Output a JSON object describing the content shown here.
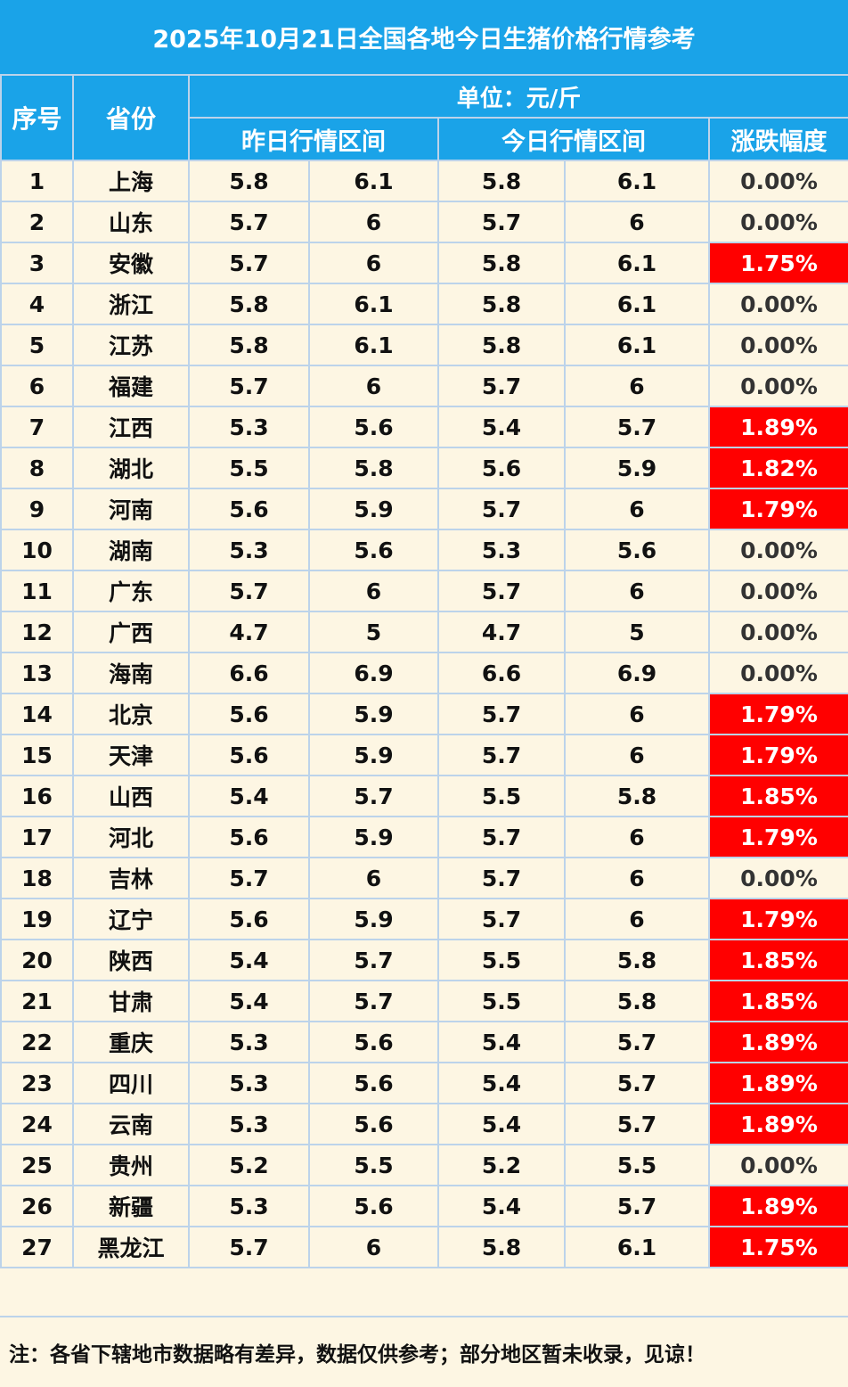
{
  "title": "2025年10月21日全国各地今日生猪价格行情参考",
  "headers": {
    "index": "序号",
    "province": "省份",
    "unit": "单位：元/斤",
    "yesterday": "昨日行情区间",
    "today": "今日行情区间",
    "change": "涨跌幅度"
  },
  "rows": [
    {
      "no": "1",
      "province": "上海",
      "y_low": "5.8",
      "y_high": "6.1",
      "t_low": "5.8",
      "t_high": "6.1",
      "change": "0.00%"
    },
    {
      "no": "2",
      "province": "山东",
      "y_low": "5.7",
      "y_high": "6",
      "t_low": "5.7",
      "t_high": "6",
      "change": "0.00%"
    },
    {
      "no": "3",
      "province": "安徽",
      "y_low": "5.7",
      "y_high": "6",
      "t_low": "5.8",
      "t_high": "6.1",
      "change": "1.75%"
    },
    {
      "no": "4",
      "province": "浙江",
      "y_low": "5.8",
      "y_high": "6.1",
      "t_low": "5.8",
      "t_high": "6.1",
      "change": "0.00%"
    },
    {
      "no": "5",
      "province": "江苏",
      "y_low": "5.8",
      "y_high": "6.1",
      "t_low": "5.8",
      "t_high": "6.1",
      "change": "0.00%"
    },
    {
      "no": "6",
      "province": "福建",
      "y_low": "5.7",
      "y_high": "6",
      "t_low": "5.7",
      "t_high": "6",
      "change": "0.00%"
    },
    {
      "no": "7",
      "province": "江西",
      "y_low": "5.3",
      "y_high": "5.6",
      "t_low": "5.4",
      "t_high": "5.7",
      "change": "1.89%"
    },
    {
      "no": "8",
      "province": "湖北",
      "y_low": "5.5",
      "y_high": "5.8",
      "t_low": "5.6",
      "t_high": "5.9",
      "change": "1.82%"
    },
    {
      "no": "9",
      "province": "河南",
      "y_low": "5.6",
      "y_high": "5.9",
      "t_low": "5.7",
      "t_high": "6",
      "change": "1.79%"
    },
    {
      "no": "10",
      "province": "湖南",
      "y_low": "5.3",
      "y_high": "5.6",
      "t_low": "5.3",
      "t_high": "5.6",
      "change": "0.00%"
    },
    {
      "no": "11",
      "province": "广东",
      "y_low": "5.7",
      "y_high": "6",
      "t_low": "5.7",
      "t_high": "6",
      "change": "0.00%"
    },
    {
      "no": "12",
      "province": "广西",
      "y_low": "4.7",
      "y_high": "5",
      "t_low": "4.7",
      "t_high": "5",
      "change": "0.00%"
    },
    {
      "no": "13",
      "province": "海南",
      "y_low": "6.6",
      "y_high": "6.9",
      "t_low": "6.6",
      "t_high": "6.9",
      "change": "0.00%"
    },
    {
      "no": "14",
      "province": "北京",
      "y_low": "5.6",
      "y_high": "5.9",
      "t_low": "5.7",
      "t_high": "6",
      "change": "1.79%"
    },
    {
      "no": "15",
      "province": "天津",
      "y_low": "5.6",
      "y_high": "5.9",
      "t_low": "5.7",
      "t_high": "6",
      "change": "1.79%"
    },
    {
      "no": "16",
      "province": "山西",
      "y_low": "5.4",
      "y_high": "5.7",
      "t_low": "5.5",
      "t_high": "5.8",
      "change": "1.85%"
    },
    {
      "no": "17",
      "province": "河北",
      "y_low": "5.6",
      "y_high": "5.9",
      "t_low": "5.7",
      "t_high": "6",
      "change": "1.79%"
    },
    {
      "no": "18",
      "province": "吉林",
      "y_low": "5.7",
      "y_high": "6",
      "t_low": "5.7",
      "t_high": "6",
      "change": "0.00%"
    },
    {
      "no": "19",
      "province": "辽宁",
      "y_low": "5.6",
      "y_high": "5.9",
      "t_low": "5.7",
      "t_high": "6",
      "change": "1.79%"
    },
    {
      "no": "20",
      "province": "陕西",
      "y_low": "5.4",
      "y_high": "5.7",
      "t_low": "5.5",
      "t_high": "5.8",
      "change": "1.85%"
    },
    {
      "no": "21",
      "province": "甘肃",
      "y_low": "5.4",
      "y_high": "5.7",
      "t_low": "5.5",
      "t_high": "5.8",
      "change": "1.85%"
    },
    {
      "no": "22",
      "province": "重庆",
      "y_low": "5.3",
      "y_high": "5.6",
      "t_low": "5.4",
      "t_high": "5.7",
      "change": "1.89%"
    },
    {
      "no": "23",
      "province": "四川",
      "y_low": "5.3",
      "y_high": "5.6",
      "t_low": "5.4",
      "t_high": "5.7",
      "change": "1.89%"
    },
    {
      "no": "24",
      "province": "云南",
      "y_low": "5.3",
      "y_high": "5.6",
      "t_low": "5.4",
      "t_high": "5.7",
      "change": "1.89%"
    },
    {
      "no": "25",
      "province": "贵州",
      "y_low": "5.2",
      "y_high": "5.5",
      "t_low": "5.2",
      "t_high": "5.5",
      "change": "0.00%"
    },
    {
      "no": "26",
      "province": "新疆",
      "y_low": "5.3",
      "y_high": "5.6",
      "t_low": "5.4",
      "t_high": "5.7",
      "change": "1.89%"
    },
    {
      "no": "27",
      "province": "黑龙江",
      "y_low": "5.7",
      "y_high": "6",
      "t_low": "5.8",
      "t_high": "6.1",
      "change": "1.75%"
    }
  ],
  "footer_note": "注：各省下辖地市数据略有差异，数据仅供参考；部分地区暂未收录，见谅！",
  "colors": {
    "header_bg": "#1aa3e8",
    "body_bg": "#fdf6e3",
    "rise_bg": "#ff0000",
    "grid_line": "#bcd3ea"
  }
}
